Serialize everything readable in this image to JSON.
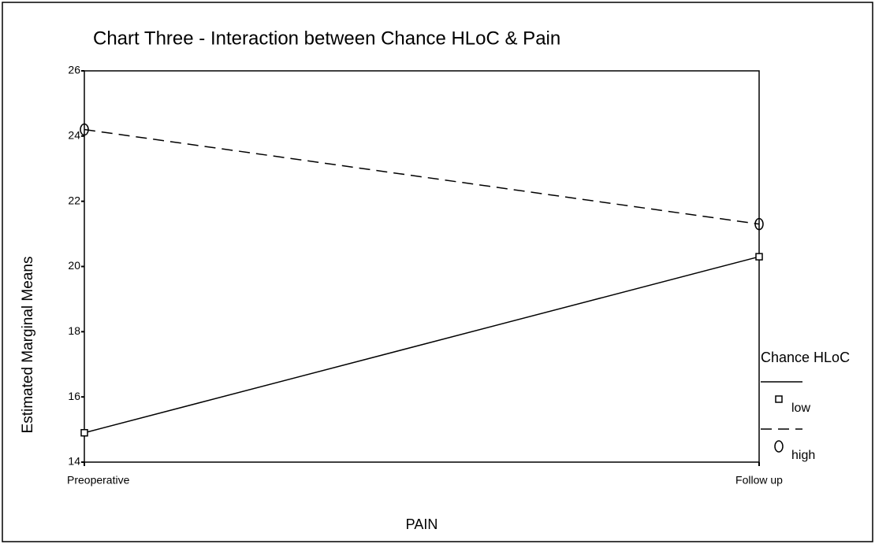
{
  "chart_data": {
    "type": "line",
    "title": "Chart Three - Interaction between Chance HLoC & Pain",
    "x_label": "PAIN",
    "y_label": "Estimated Marginal Means",
    "categories": [
      "Preoperative",
      "Follow up"
    ],
    "legend_title": "Chance HLoC",
    "legend": "right",
    "series": [
      {
        "name": "low",
        "color": "#000000",
        "line_style": "solid",
        "marker": "square",
        "values": [
          14.9,
          20.3
        ]
      },
      {
        "name": "high",
        "color": "#000000",
        "line_style": "dashed",
        "marker": "circle",
        "values": [
          24.2,
          21.3
        ]
      }
    ],
    "ylim": [
      14,
      26
    ],
    "yticks": [
      14,
      16,
      18,
      20,
      22,
      24,
      26
    ],
    "grid": false
  }
}
